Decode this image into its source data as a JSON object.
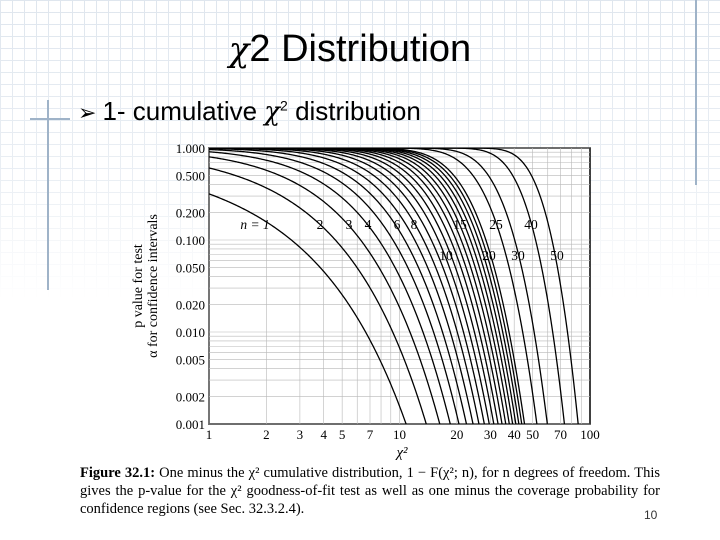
{
  "slide": {
    "title_chi": "χ",
    "title_sup": "2",
    "title_rest": " Distribution",
    "bullet_prefix": "1- cumulative ",
    "bullet_chi": "χ",
    "bullet_sup": "2",
    "bullet_rest": " distribution",
    "page_number": "10"
  },
  "caption": {
    "label": "Figure 32.1:",
    "text": " One minus the χ² cumulative distribution, 1 − F(χ²; n), for n degrees of freedom. This gives the p-value for the χ² goodness-of-fit test as well as one minus the coverage probability for confidence regions (see Sec. 32.3.2.4)."
  },
  "chart_data": {
    "type": "line",
    "xscale": "log",
    "yscale": "log",
    "xlim": [
      1,
      100
    ],
    "ylim": [
      0.001,
      1.0
    ],
    "x_ticks": [
      "1",
      "2",
      "3",
      "4",
      "5",
      "7",
      "10",
      "20",
      "30",
      "40",
      "50",
      "70",
      "100"
    ],
    "y_ticks": [
      "1.000",
      "0.500",
      "0.200",
      "0.100",
      "0.050",
      "0.020",
      "0.010",
      "0.005",
      "0.002",
      "0.001"
    ],
    "xlabel": "χ²",
    "ylabel_line1": "p value for test",
    "ylabel_line2": "α for confidence intervals",
    "curve_labels_top": [
      "n = 1",
      "2",
      "3",
      "4",
      "6",
      "8",
      "15",
      "25",
      "40"
    ],
    "curve_labels_bottom": [
      "10",
      "20",
      "30",
      "50"
    ],
    "series_dof": [
      1,
      2,
      3,
      4,
      5,
      6,
      7,
      8,
      9,
      10,
      11,
      12,
      13,
      14,
      15,
      16,
      17,
      18,
      19,
      20,
      25,
      30,
      40,
      50
    ],
    "grid": true
  }
}
